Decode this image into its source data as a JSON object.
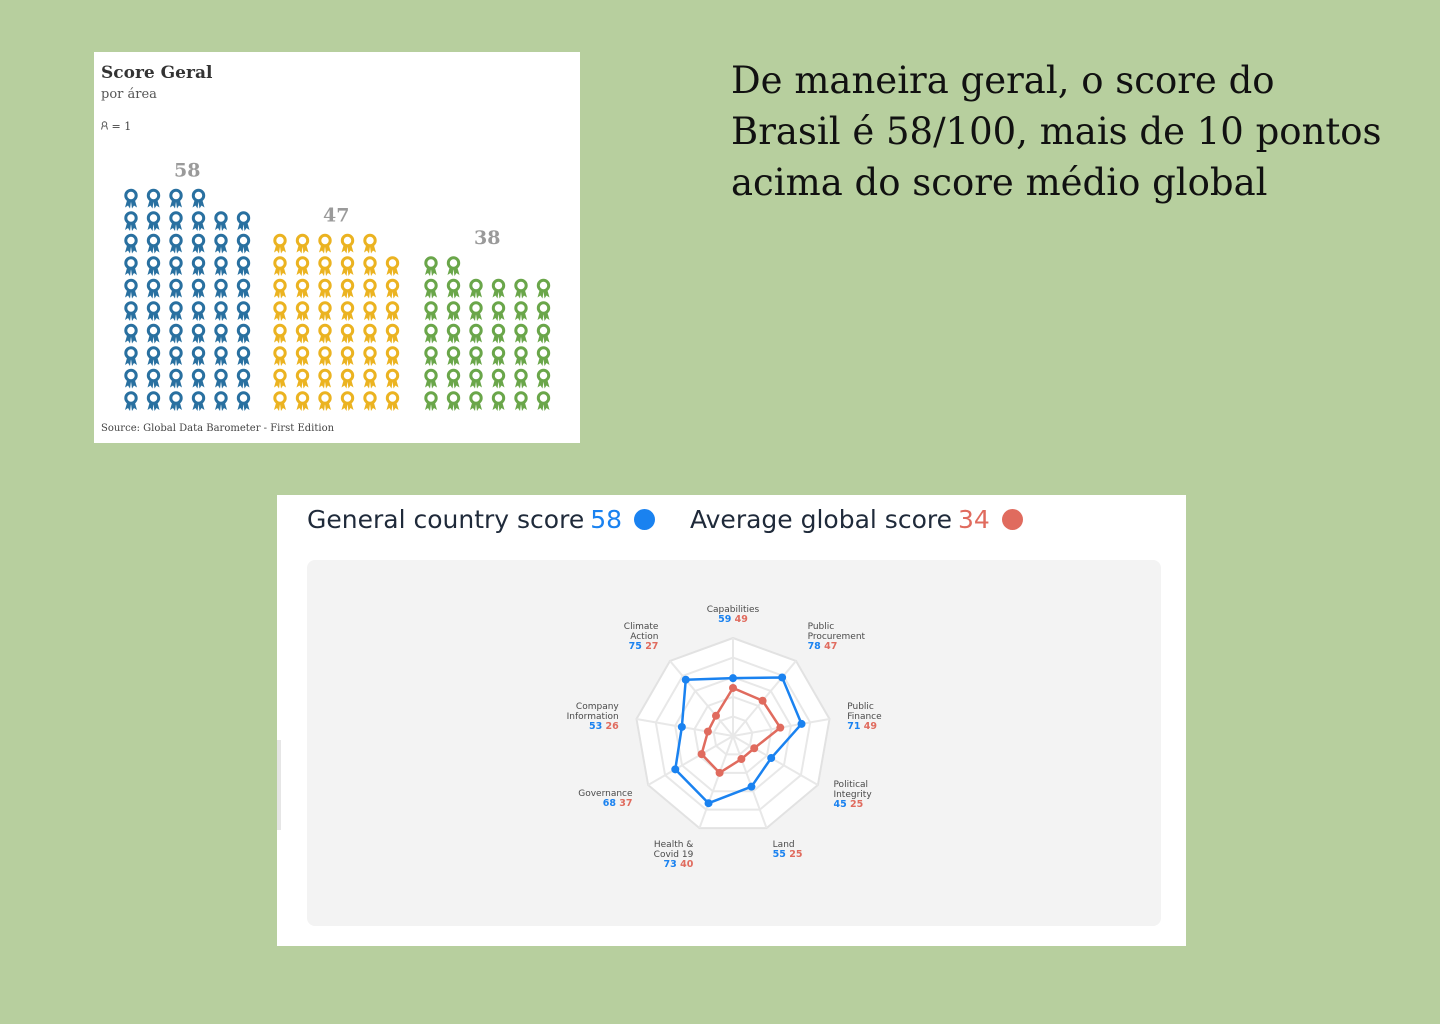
{
  "headline": "De maneira geral, o score do Brasil é 58/100, mais de 10 pontos acima do score médio global",
  "pictogram": {
    "title": "Score Geral",
    "subtitle": "por área",
    "legend": "= 1",
    "source": "Source: Global Data Barometer - First Edition"
  },
  "radar_header": {
    "general_label": "General country score",
    "general_value": "58",
    "average_label": "Average global score",
    "average_value": "34"
  },
  "colors": {
    "blue_series": "#1a82f0",
    "red_series": "#e06b5e",
    "pict_blue": "#2970a0",
    "pict_yellow": "#ebb321",
    "pict_green": "#6aa64a"
  },
  "chart_data": [
    {
      "type": "bar",
      "title": "Score Geral",
      "subtitle": "por área",
      "categories": [
        "",
        "",
        ""
      ],
      "values": [
        58,
        47,
        38
      ],
      "unit_icon": "award-ribbon-icon",
      "unit_value": 1
    },
    {
      "type": "radar",
      "axes": [
        "Capabilities",
        "Public Procurement",
        "Public Finance",
        "Political Integrity",
        "Land",
        "Health & Covid 19",
        "Governance",
        "Company Information",
        "Climate Action"
      ],
      "axis_lines": [
        [
          "Capabilities"
        ],
        [
          "Public",
          "Procurement"
        ],
        [
          "Public",
          "Finance"
        ],
        [
          "Political",
          "Integrity"
        ],
        [
          "Land"
        ],
        [
          "Health &",
          "Covid 19"
        ],
        [
          "Governance"
        ],
        [
          "Company",
          "Information"
        ],
        [
          "Climate",
          "Action"
        ]
      ],
      "series": [
        {
          "name": "General country score",
          "values": [
            59,
            78,
            71,
            45,
            55,
            73,
            68,
            53,
            75
          ]
        },
        {
          "name": "Average global score",
          "values": [
            49,
            47,
            49,
            25,
            25,
            40,
            37,
            26,
            27
          ]
        }
      ],
      "rmax": 100,
      "grid_rings": 5
    }
  ]
}
